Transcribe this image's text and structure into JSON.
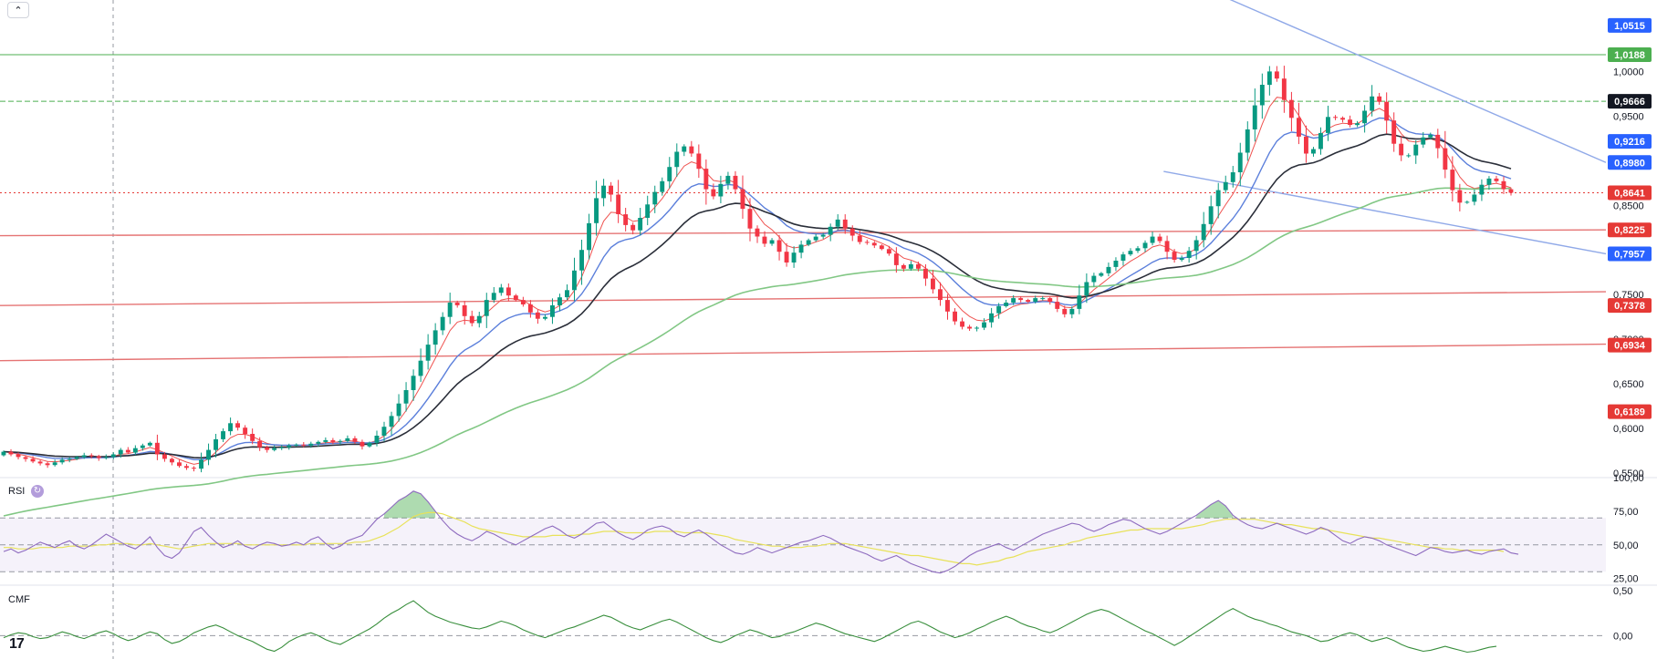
{
  "chart_data": [
    {
      "type": "candlestick",
      "pane": "price",
      "y_axis": {
        "ticks": [
          "1,0000",
          "0,9500",
          "0,8500",
          "0,7500",
          "0,7000",
          "0,6500",
          "0,6000",
          "0,5500"
        ],
        "tick_values": [
          1.0,
          0.95,
          0.85,
          0.75,
          0.7,
          0.65,
          0.6,
          0.55
        ],
        "ylim": [
          0.545,
          1.08
        ]
      },
      "price_tags": [
        {
          "label": "1,0515",
          "value": 1.0515,
          "color": "#2962ff"
        },
        {
          "label": "1,0188",
          "value": 1.0188,
          "color": "#4caf50"
        },
        {
          "label": "0,9666",
          "value": 0.9666,
          "color": "#131722"
        },
        {
          "label": "0,9216",
          "value": 0.9216,
          "color": "#2962ff"
        },
        {
          "label": "0,8980",
          "value": 0.898,
          "color": "#2962ff"
        },
        {
          "label": "0,8641",
          "value": 0.8641,
          "color": "#e53935"
        },
        {
          "label": "0,8225",
          "value": 0.8225,
          "color": "#e53935"
        },
        {
          "label": "0,7957",
          "value": 0.7957,
          "color": "#2962ff"
        },
        {
          "label": "0,7378",
          "value": 0.7378,
          "color": "#e53935"
        },
        {
          "label": "0,6934",
          "value": 0.6934,
          "color": "#e53935"
        },
        {
          "label": "0,6189",
          "value": 0.6189,
          "color": "#e53935"
        }
      ],
      "horizontal_levels": [
        {
          "value": 1.0188,
          "color": "#4caf50",
          "style": "solid"
        },
        {
          "value": 0.9666,
          "color": "#4caf50",
          "style": "dashed"
        },
        {
          "value": 0.8641,
          "color": "#e53935",
          "style": "dotted"
        }
      ],
      "sloped_lines": [
        {
          "color": "#e57373",
          "from": [
            0,
            0.7378
          ],
          "to": [
            1,
            0.7532
          ]
        },
        {
          "color": "#e57373",
          "from": [
            0,
            0.676
          ],
          "to": [
            1,
            0.6945
          ]
        },
        {
          "color": "#e57373",
          "from": [
            0,
            0.816
          ],
          "to": [
            1,
            0.8225
          ]
        },
        {
          "color": "#90a9e8",
          "from": [
            0.7436,
            1.098
          ],
          "to": [
            1,
            0.898
          ]
        },
        {
          "color": "#90a9e8",
          "from": [
            0.7246,
            0.888
          ],
          "to": [
            1,
            0.7957
          ]
        }
      ],
      "closes": [
        0.574,
        0.571,
        0.568,
        0.566,
        0.563,
        0.561,
        0.559,
        0.562,
        0.565,
        0.566,
        0.568,
        0.57,
        0.569,
        0.567,
        0.568,
        0.571,
        0.576,
        0.573,
        0.578,
        0.581,
        0.584,
        0.571,
        0.566,
        0.562,
        0.558,
        0.556,
        0.555,
        0.565,
        0.576,
        0.588,
        0.597,
        0.606,
        0.601,
        0.594,
        0.586,
        0.579,
        0.576,
        0.578,
        0.579,
        0.581,
        0.582,
        0.581,
        0.583,
        0.585,
        0.587,
        0.585,
        0.586,
        0.589,
        0.585,
        0.58,
        0.584,
        0.592,
        0.602,
        0.614,
        0.628,
        0.643,
        0.659,
        0.676,
        0.694,
        0.71,
        0.725,
        0.741,
        0.738,
        0.726,
        0.718,
        0.726,
        0.744,
        0.752,
        0.758,
        0.749,
        0.744,
        0.739,
        0.73,
        0.723,
        0.725,
        0.738,
        0.747,
        0.755,
        0.777,
        0.8,
        0.83,
        0.858,
        0.872,
        0.862,
        0.84,
        0.828,
        0.822,
        0.836,
        0.851,
        0.865,
        0.877,
        0.893,
        0.91,
        0.916,
        0.908,
        0.891,
        0.868,
        0.86,
        0.874,
        0.883,
        0.868,
        0.846,
        0.824,
        0.815,
        0.807,
        0.811,
        0.798,
        0.786,
        0.797,
        0.806,
        0.811,
        0.815,
        0.817,
        0.826,
        0.834,
        0.824,
        0.816,
        0.809,
        0.808,
        0.805,
        0.801,
        0.796,
        0.783,
        0.779,
        0.784,
        0.779,
        0.768,
        0.756,
        0.744,
        0.731,
        0.72,
        0.714,
        0.712,
        0.713,
        0.719,
        0.729,
        0.737,
        0.741,
        0.746,
        0.744,
        0.742,
        0.746,
        0.746,
        0.742,
        0.734,
        0.728,
        0.734,
        0.749,
        0.764,
        0.771,
        0.774,
        0.781,
        0.788,
        0.795,
        0.799,
        0.802,
        0.808,
        0.815,
        0.81,
        0.798,
        0.789,
        0.791,
        0.799,
        0.811,
        0.829,
        0.849,
        0.867,
        0.876,
        0.887,
        0.909,
        0.935,
        0.962,
        0.985,
        1.0,
        0.992,
        0.968,
        0.948,
        0.927,
        0.908,
        0.913,
        0.931,
        0.949,
        0.948,
        0.946,
        0.94,
        0.942,
        0.956,
        0.972,
        0.966,
        0.945,
        0.919,
        0.906,
        0.906,
        0.918,
        0.926,
        0.929,
        0.914,
        0.89,
        0.867,
        0.853,
        0.854,
        0.862,
        0.873,
        0.88,
        0.877,
        0.868,
        0.864
      ],
      "ma_lines": [
        {
          "name": "",
          "color": "#ef5350",
          "width": 1
        },
        {
          "name": "",
          "color": "#5b7fdb",
          "width": 1.4
        },
        {
          "name": "",
          "color": "#2a2e39",
          "width": 1.6
        },
        {
          "name": "",
          "color": "#81c784",
          "width": 1.6
        }
      ]
    },
    {
      "type": "line",
      "pane": "rsi",
      "title": "RSI",
      "y_axis": {
        "ticks": [
          "100,00",
          "75,00",
          "50,00",
          "25,00"
        ],
        "tick_values": [
          100,
          75,
          50,
          25
        ],
        "ylim": [
          20,
          100
        ]
      },
      "band": [
        30,
        70
      ],
      "overbought": 70,
      "oversold": 30,
      "series": [
        {
          "name": "",
          "color": "#8e6bbf",
          "values": [
            45,
            47,
            44,
            46,
            49,
            52,
            50,
            48,
            51,
            53,
            49,
            47,
            50,
            54,
            58,
            55,
            52,
            49,
            47,
            51,
            56,
            48,
            42,
            40,
            44,
            52,
            60,
            63,
            57,
            52,
            48,
            50,
            53,
            49,
            47,
            50,
            52,
            51,
            49,
            50,
            52,
            50,
            54,
            56,
            51,
            47,
            49,
            53,
            55,
            57,
            63,
            69,
            73,
            78,
            83,
            86,
            90,
            88,
            82,
            75,
            68,
            62,
            58,
            55,
            53,
            56,
            60,
            58,
            55,
            52,
            50,
            53,
            56,
            59,
            62,
            64,
            61,
            57,
            55,
            58,
            62,
            66,
            67,
            63,
            59,
            56,
            54,
            57,
            61,
            63,
            64,
            62,
            58,
            56,
            59,
            61,
            58,
            54,
            50,
            47,
            44,
            43,
            45,
            48,
            46,
            44,
            46,
            48,
            50,
            52,
            53,
            55,
            57,
            55,
            52,
            49,
            47,
            45,
            43,
            40,
            38,
            40,
            42,
            39,
            36,
            34,
            32,
            30,
            29,
            31,
            34,
            38,
            42,
            45,
            47,
            49,
            51,
            48,
            46,
            49,
            52,
            55,
            58,
            60,
            62,
            64,
            66,
            65,
            62,
            60,
            62,
            65,
            67,
            69,
            68,
            65,
            62,
            60,
            58,
            60,
            63,
            66,
            69,
            72,
            76,
            80,
            83,
            79,
            72,
            68,
            65,
            63,
            62,
            64,
            66,
            64,
            62,
            60,
            58,
            60,
            63,
            61,
            57,
            53,
            51,
            54,
            56,
            55,
            53,
            50,
            48,
            46,
            44,
            42,
            45,
            48,
            47,
            45,
            44,
            45,
            46,
            44,
            43,
            45,
            46,
            47,
            44,
            43
          ]
        },
        {
          "name": "",
          "color": "#e8e25a",
          "values": [
            48,
            48,
            47,
            47,
            47,
            48,
            48,
            48,
            48,
            49,
            49,
            49,
            49,
            50,
            50,
            51,
            51,
            51,
            50,
            50,
            51,
            50,
            49,
            48,
            47,
            48,
            49,
            50,
            51,
            51,
            51,
            51,
            51,
            50,
            50,
            50,
            50,
            50,
            50,
            50,
            50,
            50,
            51,
            51,
            51,
            51,
            51,
            51,
            52,
            52,
            53,
            55,
            57,
            60,
            63,
            67,
            71,
            73,
            74,
            74,
            73,
            71,
            69,
            67,
            64,
            62,
            61,
            60,
            59,
            58,
            57,
            56,
            56,
            56,
            56,
            57,
            57,
            57,
            57,
            58,
            58,
            59,
            60,
            60,
            60,
            59,
            59,
            59,
            59,
            60,
            60,
            60,
            60,
            59,
            59,
            59,
            59,
            58,
            57,
            56,
            54,
            53,
            52,
            51,
            50,
            49,
            49,
            48,
            48,
            48,
            49,
            49,
            50,
            51,
            51,
            51,
            50,
            49,
            48,
            47,
            46,
            45,
            44,
            43,
            42,
            42,
            41,
            40,
            39,
            38,
            37,
            36,
            36,
            35,
            36,
            37,
            38,
            40,
            41,
            43,
            45,
            46,
            47,
            48,
            49,
            50,
            52,
            53,
            55,
            56,
            57,
            58,
            59,
            60,
            61,
            61,
            62,
            62,
            62,
            62,
            62,
            62,
            63,
            64,
            65,
            67,
            68,
            69,
            69,
            69,
            69,
            69,
            68,
            67,
            66,
            65,
            65,
            64,
            63,
            62,
            62,
            61,
            60,
            59,
            58,
            57,
            56,
            55,
            55,
            54,
            53,
            52,
            51,
            50,
            49,
            48,
            48,
            47,
            47,
            46,
            46,
            46,
            46,
            46,
            46,
            45
          ]
        }
      ]
    },
    {
      "type": "line",
      "pane": "cmf",
      "title": "CMF",
      "y_axis": {
        "ticks": [
          "0,50",
          "0,00"
        ],
        "tick_values": [
          0.5,
          0.0
        ],
        "ylim": [
          -0.24,
          0.52
        ]
      },
      "zero_line": 0.0,
      "series": [
        {
          "name": "",
          "color": "#388e3c",
          "values": [
            -0.02,
            0.01,
            0.03,
            0.02,
            -0.01,
            -0.03,
            -0.02,
            0.01,
            0.04,
            0.02,
            -0.01,
            -0.03,
            0.0,
            0.03,
            0.05,
            0.02,
            -0.02,
            -0.05,
            -0.03,
            0.01,
            0.04,
            0.02,
            -0.04,
            -0.08,
            -0.06,
            -0.02,
            0.03,
            0.06,
            0.09,
            0.11,
            0.08,
            0.04,
            0.0,
            -0.03,
            -0.06,
            -0.1,
            -0.14,
            -0.16,
            -0.12,
            -0.06,
            -0.02,
            0.01,
            0.03,
            0.0,
            -0.04,
            -0.07,
            -0.09,
            -0.05,
            -0.01,
            0.03,
            0.07,
            0.12,
            0.18,
            0.23,
            0.27,
            0.32,
            0.36,
            0.3,
            0.24,
            0.2,
            0.17,
            0.14,
            0.12,
            0.1,
            0.08,
            0.07,
            0.09,
            0.12,
            0.15,
            0.13,
            0.1,
            0.06,
            0.03,
            0.0,
            -0.02,
            0.01,
            0.04,
            0.07,
            0.09,
            0.12,
            0.15,
            0.18,
            0.21,
            0.19,
            0.15,
            0.11,
            0.08,
            0.06,
            0.09,
            0.12,
            0.15,
            0.17,
            0.14,
            0.1,
            0.06,
            0.02,
            -0.02,
            -0.05,
            -0.07,
            -0.04,
            0.0,
            0.03,
            0.06,
            0.04,
            0.01,
            -0.02,
            -0.01,
            0.02,
            0.04,
            0.07,
            0.1,
            0.13,
            0.11,
            0.08,
            0.05,
            0.02,
            0.0,
            -0.02,
            -0.04,
            -0.06,
            -0.03,
            0.01,
            0.05,
            0.09,
            0.13,
            0.15,
            0.12,
            0.08,
            0.04,
            0.01,
            -0.02,
            0.0,
            0.03,
            0.07,
            0.1,
            0.14,
            0.17,
            0.2,
            0.17,
            0.13,
            0.1,
            0.08,
            0.05,
            0.03,
            0.06,
            0.1,
            0.14,
            0.18,
            0.22,
            0.25,
            0.27,
            0.25,
            0.21,
            0.17,
            0.13,
            0.09,
            0.05,
            0.02,
            -0.02,
            -0.06,
            -0.1,
            -0.06,
            -0.01,
            0.04,
            0.09,
            0.14,
            0.19,
            0.24,
            0.28,
            0.24,
            0.2,
            0.17,
            0.15,
            0.12,
            0.1,
            0.07,
            0.04,
            0.02,
            0.0,
            -0.03,
            -0.06,
            -0.05,
            -0.02,
            0.01,
            0.03,
            0.01,
            -0.03,
            -0.06,
            -0.04,
            -0.02,
            -0.05,
            -0.09,
            -0.12,
            -0.14,
            -0.16,
            -0.15,
            -0.13,
            -0.11,
            -0.13,
            -0.15,
            -0.17,
            -0.16,
            -0.14,
            -0.12,
            -0.11
          ]
        }
      ]
    }
  ],
  "ui": {
    "collapse_label": "⌃",
    "rsi_label": "RSI",
    "cmf_label": "CMF",
    "rsi_icon": "refresh-icon",
    "logo_text": "17"
  }
}
